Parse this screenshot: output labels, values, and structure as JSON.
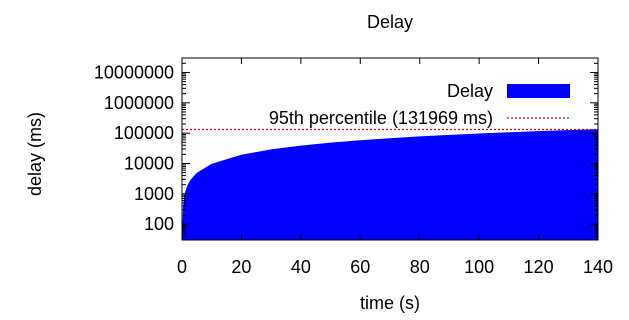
{
  "chart_data": {
    "type": "area",
    "title": "Delay",
    "xlabel": "time (s)",
    "ylabel": "delay (ms)",
    "x_ticks": [
      0,
      20,
      40,
      60,
      80,
      100,
      120,
      140
    ],
    "y_ticks": [
      100,
      1000,
      10000,
      100000,
      1000000,
      10000000
    ],
    "y_tick_labels": [
      "100",
      "1000",
      "10000",
      "100000",
      "1000000",
      "10000000"
    ],
    "xlim": [
      0,
      140
    ],
    "ylim": [
      30,
      30000000
    ],
    "y_scale": "log",
    "grid": false,
    "legend_position": "top-right",
    "series": [
      {
        "name": "Delay",
        "type": "area",
        "color": "#0000ff",
        "x": [
          0.2,
          0.5,
          1,
          2,
          3,
          5,
          10,
          20,
          30,
          40,
          50,
          60,
          70,
          80,
          90,
          100,
          110,
          120,
          130,
          140
        ],
        "values": [
          40,
          350,
          1000,
          1900,
          2800,
          4700,
          9400,
          18800,
          28000,
          37500,
          47000,
          56000,
          65500,
          75000,
          84000,
          93500,
          103000,
          112000,
          121500,
          131000
        ]
      },
      {
        "name": "95th percentile (131969 ms)",
        "type": "hline",
        "color": "#cc0000",
        "y": 131969
      }
    ]
  }
}
